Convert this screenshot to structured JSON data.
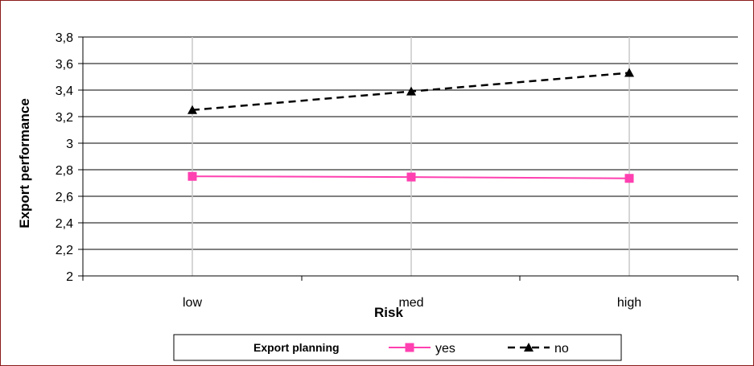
{
  "chart_data": {
    "type": "line",
    "categories": [
      "low",
      "med",
      "high"
    ],
    "series": [
      {
        "name": "yes",
        "values": [
          2.75,
          2.745,
          2.735
        ],
        "color": "#ff40b0",
        "marker": "square",
        "dash": "solid"
      },
      {
        "name": "no",
        "values": [
          3.25,
          3.39,
          3.53
        ],
        "color": "#000000",
        "marker": "triangle",
        "dash": "dashed"
      }
    ],
    "ylim": [
      2,
      3.8
    ],
    "yticks": [
      "2",
      "2,2",
      "2,4",
      "2,6",
      "2,8",
      "3",
      "3,2",
      "3,4",
      "3,6",
      "3,8"
    ],
    "xlabel": "Risk",
    "ylabel": "Export performance",
    "grid": true,
    "legend": {
      "title": "Export planning",
      "placement": "bottom"
    }
  }
}
